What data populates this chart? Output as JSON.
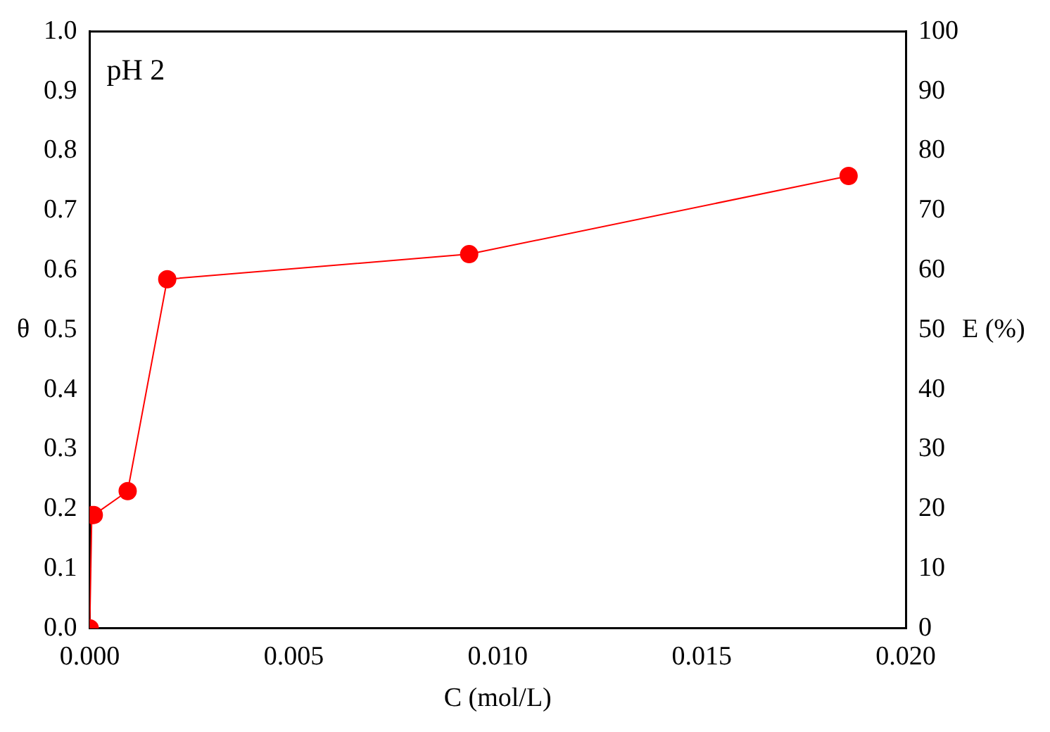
{
  "chart_data": {
    "type": "line",
    "annotations": [
      "pH 2"
    ],
    "xlabel": "C (mol/L)",
    "ylabel": "θ",
    "y2label": "E (%)",
    "x": [
      0,
      5e-05,
      0.0001,
      0.00093,
      0.0019,
      0.0093,
      0.0186
    ],
    "series": [
      {
        "color": "#ff0000",
        "values": [
          0,
          0.19,
          0.19,
          0.23,
          0.585,
          0.627,
          0.758
        ]
      }
    ],
    "xlim": [
      0,
      0.02
    ],
    "xticks": [
      {
        "value": 0,
        "label": "0.000"
      },
      {
        "value": 0.005,
        "label": "0.005"
      },
      {
        "value": 0.01,
        "label": "0.010"
      },
      {
        "value": 0.015,
        "label": "0.015"
      },
      {
        "value": 0.02,
        "label": "0.020"
      }
    ],
    "ylim": [
      0,
      1
    ],
    "yticks": [
      {
        "value": 0,
        "label": "0.0"
      },
      {
        "value": 0.1,
        "label": "0.1"
      },
      {
        "value": 0.2,
        "label": "0.2"
      },
      {
        "value": 0.3,
        "label": "0.3"
      },
      {
        "value": 0.4,
        "label": "0.4"
      },
      {
        "value": 0.5,
        "label": "0.5"
      },
      {
        "value": 0.6,
        "label": "0.6"
      },
      {
        "value": 0.7,
        "label": "0.7"
      },
      {
        "value": 0.8,
        "label": "0.8"
      },
      {
        "value": 0.9,
        "label": "0.9"
      },
      {
        "value": 1,
        "label": "1.0"
      }
    ],
    "y2lim": [
      0,
      100
    ],
    "y2ticks": [
      0,
      10,
      20,
      30,
      40,
      50,
      60,
      70,
      80,
      90,
      100
    ],
    "grid": false,
    "legend": false,
    "marker": "circle",
    "line_style": "solid"
  }
}
